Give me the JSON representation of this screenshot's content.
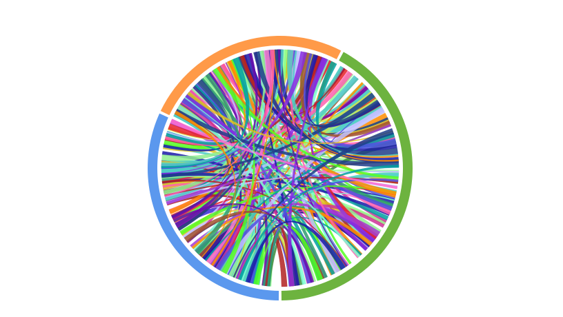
{
  "chart_data": {
    "type": "chord",
    "title": "",
    "groups": [
      {
        "color": "#6db33f",
        "start_deg": -62,
        "end_deg": 90
      },
      {
        "color": "#5b98ee",
        "start_deg": 90,
        "end_deg": 205
      },
      {
        "color": "#ff9a48",
        "start_deg": 205,
        "end_deg": 298
      }
    ],
    "ribbon_colors": [
      "#4ecdc4",
      "#1a1aa8",
      "#e8202a",
      "#55ff22",
      "#a23bd6",
      "#3a8a3a",
      "#ff5fae",
      "#a0522d",
      "#1f3d8a",
      "#d6e84a",
      "#8a2be2",
      "#ff6fcf",
      "#2f9e6e",
      "#c0c0ff",
      "#6a0dad",
      "#99ff99",
      "#b22222",
      "#00a0a0",
      "#e0c020",
      "#5050e0",
      "#ff8c00",
      "#7fffd4",
      "#cc3399",
      "#90ee90"
    ],
    "large_ribbon_color": "#4ecdc4",
    "accent_ribbon_color": "#2a0a8a",
    "ribbon_count": 230
  }
}
